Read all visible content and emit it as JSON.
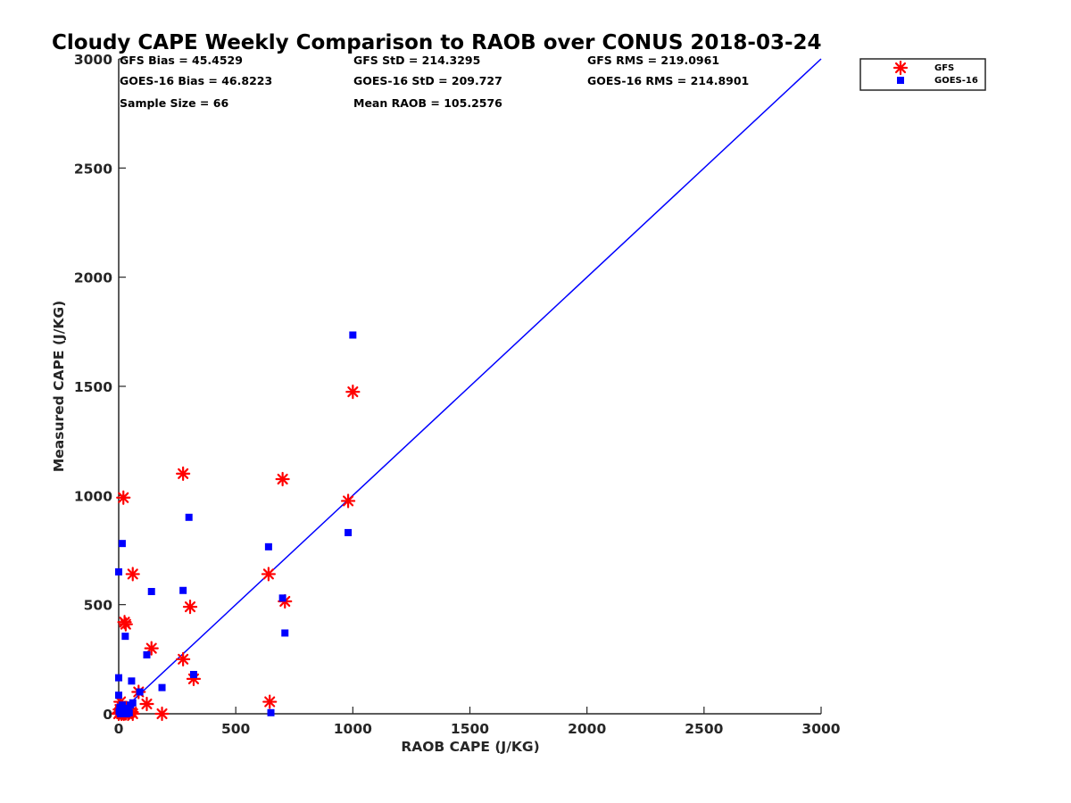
{
  "chart_data": {
    "type": "scatter",
    "title": "Cloudy CAPE Weekly Comparison to RAOB over CONUS 2018-03-24",
    "xlabel": "RAOB CAPE (J/KG)",
    "ylabel": "Measured CAPE (J/KG)",
    "xlim": [
      0,
      3000
    ],
    "ylim": [
      0,
      3000
    ],
    "xticks": [
      "0",
      "500",
      "1000",
      "1500",
      "2000",
      "2500",
      "3000"
    ],
    "yticks": [
      "0",
      "500",
      "1000",
      "1500",
      "2000",
      "2500",
      "3000"
    ],
    "grid": false,
    "legend_position": "top-right",
    "reference_line": {
      "x": [
        0,
        3000
      ],
      "y": [
        0,
        3000
      ],
      "color": "#0000ff"
    },
    "stats": {
      "gfs_bias": "GFS Bias = 45.4529",
      "gfs_std": "GFS StD = 214.3295",
      "gfs_rms": "GFS RMS = 219.0961",
      "goes_bias": "GOES-16 Bias = 46.8223",
      "goes_std": "GOES-16 StD = 209.727",
      "goes_rms": "GOES-16 RMS = 214.8901",
      "sample_size": "Sample Size = 66",
      "mean_raob": "Mean RAOB = 105.2576"
    },
    "series": [
      {
        "name": "GFS",
        "marker": "asterisk",
        "color": "#ff0000",
        "points": [
          [
            0,
            0
          ],
          [
            3,
            5
          ],
          [
            5,
            20
          ],
          [
            8,
            55
          ],
          [
            10,
            10
          ],
          [
            12,
            0
          ],
          [
            15,
            30
          ],
          [
            18,
            5
          ],
          [
            20,
            15
          ],
          [
            22,
            0
          ],
          [
            25,
            5
          ],
          [
            28,
            8
          ],
          [
            30,
            2
          ],
          [
            35,
            12
          ],
          [
            40,
            0
          ],
          [
            45,
            5
          ],
          [
            50,
            20
          ],
          [
            55,
            8
          ],
          [
            60,
            0
          ],
          [
            20,
            990
          ],
          [
            25,
            420
          ],
          [
            30,
            410
          ],
          [
            60,
            640
          ],
          [
            85,
            100
          ],
          [
            120,
            45
          ],
          [
            140,
            300
          ],
          [
            185,
            0
          ],
          [
            275,
            1100
          ],
          [
            275,
            250
          ],
          [
            305,
            490
          ],
          [
            320,
            160
          ],
          [
            640,
            640
          ],
          [
            645,
            55
          ],
          [
            700,
            1075
          ],
          [
            710,
            515
          ],
          [
            980,
            975
          ],
          [
            1000,
            1475
          ]
        ]
      },
      {
        "name": "GOES-16",
        "marker": "square",
        "color": "#0000ff",
        "points": [
          [
            0,
            650
          ],
          [
            0,
            165
          ],
          [
            0,
            85
          ],
          [
            2,
            10
          ],
          [
            5,
            30
          ],
          [
            8,
            0
          ],
          [
            10,
            5
          ],
          [
            12,
            20
          ],
          [
            15,
            780
          ],
          [
            15,
            40
          ],
          [
            18,
            0
          ],
          [
            20,
            15
          ],
          [
            22,
            25
          ],
          [
            25,
            5
          ],
          [
            28,
            355
          ],
          [
            30,
            10
          ],
          [
            35,
            0
          ],
          [
            40,
            20
          ],
          [
            45,
            5
          ],
          [
            50,
            40
          ],
          [
            55,
            150
          ],
          [
            60,
            50
          ],
          [
            90,
            100
          ],
          [
            120,
            270
          ],
          [
            140,
            560
          ],
          [
            185,
            120
          ],
          [
            275,
            565
          ],
          [
            300,
            900
          ],
          [
            320,
            180
          ],
          [
            640,
            765
          ],
          [
            650,
            5
          ],
          [
            700,
            530
          ],
          [
            710,
            370
          ],
          [
            980,
            830
          ],
          [
            1000,
            1735
          ]
        ]
      }
    ]
  }
}
